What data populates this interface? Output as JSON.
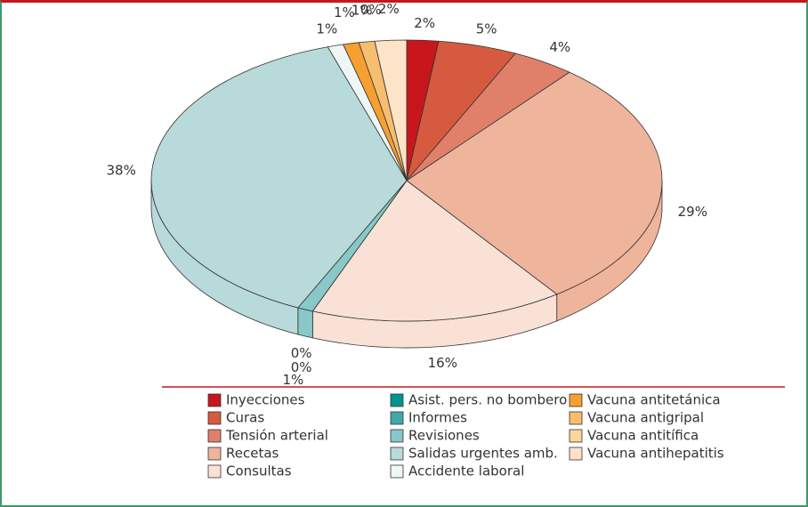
{
  "chart_data": {
    "type": "pie3d",
    "categories": [
      "Inyecciones",
      "Curas",
      "Tensión arterial",
      "Recetas",
      "Consultas",
      "Asist. pers. no bombero",
      "Informes",
      "Revisiones",
      "Salidas urgentes amb.",
      "Accidente laboral",
      "Vacuna antitetánica",
      "Vacuna antigripal",
      "Vacuna antitífica",
      "Vacuna antihepatitis"
    ],
    "values": [
      2,
      5,
      4,
      29,
      16,
      0,
      0,
      1,
      38,
      1,
      1,
      1,
      0,
      2
    ],
    "value_labels": [
      "2%",
      "5%",
      "4%",
      "29%",
      "16%",
      "0%",
      "0%",
      "1%",
      "38%",
      "1%",
      "1%",
      "1%",
      "0%",
      "2%"
    ],
    "colors": [
      "#c8161d",
      "#d65a3f",
      "#e0806a",
      "#efb49c",
      "#f9e1d6",
      "#00958f",
      "#3fa9a8",
      "#88c8c8",
      "#b8dadb",
      "#eef6f6",
      "#f5a030",
      "#f8be70",
      "#fbd59a",
      "#fde3c8"
    ]
  }
}
